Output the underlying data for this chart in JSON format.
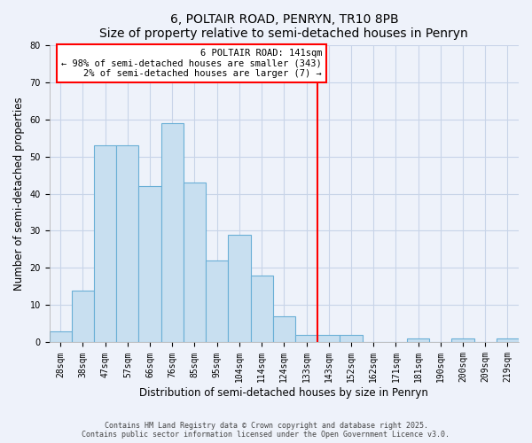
{
  "title": "6, POLTAIR ROAD, PENRYN, TR10 8PB",
  "subtitle": "Size of property relative to semi-detached houses in Penryn",
  "xlabel": "Distribution of semi-detached houses by size in Penryn",
  "ylabel": "Number of semi-detached properties",
  "bar_labels": [
    "28sqm",
    "38sqm",
    "47sqm",
    "57sqm",
    "66sqm",
    "76sqm",
    "85sqm",
    "95sqm",
    "104sqm",
    "114sqm",
    "124sqm",
    "133sqm",
    "143sqm",
    "152sqm",
    "162sqm",
    "171sqm",
    "181sqm",
    "190sqm",
    "200sqm",
    "209sqm",
    "219sqm"
  ],
  "bar_values": [
    3,
    14,
    53,
    53,
    42,
    59,
    43,
    22,
    29,
    18,
    7,
    2,
    2,
    2,
    0,
    0,
    1,
    0,
    1,
    0,
    1
  ],
  "bar_color": "#c8dff0",
  "bar_edge_color": "#6aafd6",
  "vline_idx": 12,
  "vline_color": "red",
  "ylim": [
    0,
    80
  ],
  "yticks": [
    0,
    10,
    20,
    30,
    40,
    50,
    60,
    70,
    80
  ],
  "annotation_box_text": "6 POLTAIR ROAD: 141sqm\n← 98% of semi-detached houses are smaller (343)\n2% of semi-detached houses are larger (7) →",
  "footer_line1": "Contains HM Land Registry data © Crown copyright and database right 2025.",
  "footer_line2": "Contains public sector information licensed under the Open Government Licence v3.0.",
  "background_color": "#eef2fa",
  "grid_color": "#c8d4e8",
  "title_fontsize": 10,
  "axis_label_fontsize": 8.5,
  "tick_fontsize": 7,
  "footer_fontsize": 6,
  "ann_fontsize": 7.5
}
